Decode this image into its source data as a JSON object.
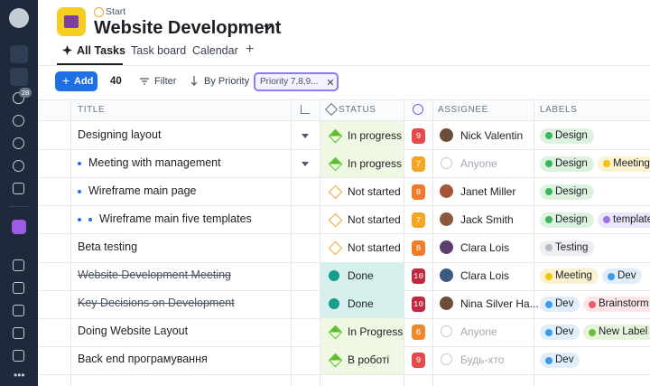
{
  "sidebar": {
    "badge": "28"
  },
  "header": {
    "breadcrumb": "Start",
    "title": "Website Development"
  },
  "tabs": [
    "All Tasks",
    "Task board",
    "Calendar",
    "+"
  ],
  "toolbar": {
    "add": "Add",
    "count": "40",
    "filter": "Filter",
    "sort": "By Priority",
    "chip": "Priority 7,8,9..."
  },
  "table": {
    "columns": [
      "TITLE",
      "STATUS",
      "ASSIGNEE",
      "LABELS"
    ],
    "rows": [
      {
        "title": "Designing layout",
        "indent": 0,
        "expand": true,
        "strike": false,
        "status": {
          "text": "In progress",
          "color": "#5cbf2a",
          "bg": "#eef8e2"
        },
        "priority": {
          "value": 9,
          "color": "#e5484d"
        },
        "assignee": {
          "name": "Nick Valentin",
          "placeholder": false
        },
        "labels": [
          {
            "text": "Design",
            "color": "#3cb55f",
            "bg": "#dcf2df"
          }
        ]
      },
      {
        "title": "Meeting with management",
        "indent": 1,
        "expand": true,
        "strike": false,
        "status": {
          "text": "In progress",
          "color": "#5cbf2a",
          "bg": "#eef8e2"
        },
        "priority": {
          "value": 7,
          "color": "#f5a524"
        },
        "assignee": {
          "name": "Anyone",
          "placeholder": true
        },
        "labels": [
          {
            "text": "Design",
            "color": "#3cb55f",
            "bg": "#dcf2df"
          },
          {
            "text": "Meeting",
            "color": "#f2c40f",
            "bg": "#fbf3cf"
          }
        ]
      },
      {
        "title": "Wireframe main page",
        "indent": 1,
        "expand": false,
        "strike": false,
        "status": {
          "text": "Not started",
          "color": "#f5a524",
          "bg": null
        },
        "priority": {
          "value": 8,
          "color": "#f07b28"
        },
        "assignee": {
          "name": "Janet Miller",
          "placeholder": false
        },
        "labels": [
          {
            "text": "Design",
            "color": "#3cb55f",
            "bg": "#dcf2df"
          }
        ]
      },
      {
        "title": "Wireframe main five templates",
        "indent": 2,
        "expand": false,
        "strike": false,
        "status": {
          "text": "Not started",
          "color": "#f5a524",
          "bg": null
        },
        "priority": {
          "value": 7,
          "color": "#f5a524"
        },
        "assignee": {
          "name": "Jack Smith",
          "placeholder": false
        },
        "labels": [
          {
            "text": "Design",
            "color": "#3cb55f",
            "bg": "#dcf2df"
          },
          {
            "text": "templates",
            "color": "#9b72e8",
            "bg": "#ece6fb"
          }
        ]
      },
      {
        "title": "Beta testing",
        "indent": 0,
        "expand": false,
        "strike": false,
        "status": {
          "text": "Not started",
          "color": "#f5a524",
          "bg": null
        },
        "priority": {
          "value": 8,
          "color": "#f07b28"
        },
        "assignee": {
          "name": "Clara Lois",
          "placeholder": false
        },
        "labels": [
          {
            "text": "Testing",
            "color": "#b5b9c0",
            "bg": "#eceef1"
          }
        ]
      },
      {
        "title": "Website Development Meeting",
        "indent": 0,
        "expand": false,
        "strike": true,
        "status": {
          "text": "Done",
          "color": "#1a9c8c",
          "bg": "#d4efec"
        },
        "priority": {
          "value": 10,
          "color": "#c1273f"
        },
        "assignee": {
          "name": "Clara Lois",
          "placeholder": false
        },
        "labels": [
          {
            "text": "Meeting",
            "color": "#f2c40f",
            "bg": "#fbf3cf"
          },
          {
            "text": "Dev",
            "color": "#3d9be9",
            "bg": "#e0eefc"
          }
        ]
      },
      {
        "title": "Key Decisions on Development",
        "indent": 0,
        "expand": false,
        "strike": true,
        "status": {
          "text": "Done",
          "color": "#1a9c8c",
          "bg": "#d4efec"
        },
        "priority": {
          "value": 10,
          "color": "#c1273f"
        },
        "assignee": {
          "name": "Nina Silver Ha...",
          "placeholder": false
        },
        "labels": [
          {
            "text": "Dev",
            "color": "#3d9be9",
            "bg": "#e0eefc"
          },
          {
            "text": "Brainstorm",
            "color": "#ef5a70",
            "bg": "#fde5e8"
          }
        ]
      },
      {
        "title": "Doing Website Layout",
        "indent": 0,
        "expand": false,
        "strike": false,
        "status": {
          "text": "In Progress",
          "color": "#5cbf2a",
          "bg": "#eef8e2"
        },
        "priority": {
          "value": 6,
          "color": "#f0892b"
        },
        "assignee": {
          "name": "Anyone",
          "placeholder": true
        },
        "labels": [
          {
            "text": "Dev",
            "color": "#3d9be9",
            "bg": "#e0eefc"
          },
          {
            "text": "New Label",
            "color": "#6bbf3a",
            "bg": "#e6f4d9"
          }
        ]
      },
      {
        "title": "Back end програмування",
        "indent": 0,
        "expand": false,
        "strike": false,
        "status": {
          "text": "В роботі",
          "color": "#5cbf2a",
          "bg": "#eef8e2"
        },
        "priority": {
          "value": 9,
          "color": "#e5484d"
        },
        "assignee": {
          "name": "Будь-хто",
          "placeholder": true
        },
        "labels": [
          {
            "text": "Dev",
            "color": "#3d9be9",
            "bg": "#e0eefc"
          }
        ]
      }
    ]
  }
}
